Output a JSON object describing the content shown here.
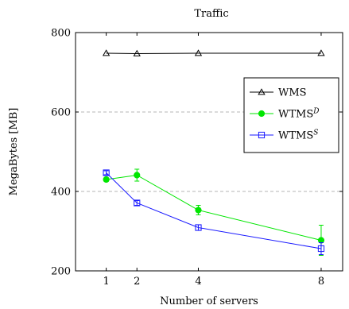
{
  "chart_data": {
    "type": "line",
    "title": "Traffic",
    "xlabel": "Number of servers",
    "ylabel": "MegaBytes [MB]",
    "x": [
      1,
      2,
      4,
      8
    ],
    "xlim": [
      0,
      8.7
    ],
    "ylim": [
      200,
      800
    ],
    "yticks": [
      200,
      400,
      600,
      800
    ],
    "y_gridlines": [
      400,
      600
    ],
    "grid": "y dashed",
    "legend_position": "upper-right",
    "series": [
      {
        "name": "WMS",
        "name_sup": "",
        "values": [
          748,
          747,
          748,
          748
        ],
        "errors": [
          0,
          0,
          0,
          0
        ],
        "color": "#000000",
        "marker": "triangle-open"
      },
      {
        "name": "WTMS",
        "name_sup": "D",
        "values": [
          430,
          441,
          353,
          277
        ],
        "errors": [
          5,
          15,
          12,
          38
        ],
        "color": "#00e600",
        "marker": "circle-filled"
      },
      {
        "name": "WTMS",
        "name_sup": "S",
        "values": [
          447,
          371,
          309,
          256
        ],
        "errors": [
          5,
          6,
          7,
          15
        ],
        "color": "#1a1aff",
        "marker": "square-open"
      }
    ]
  }
}
